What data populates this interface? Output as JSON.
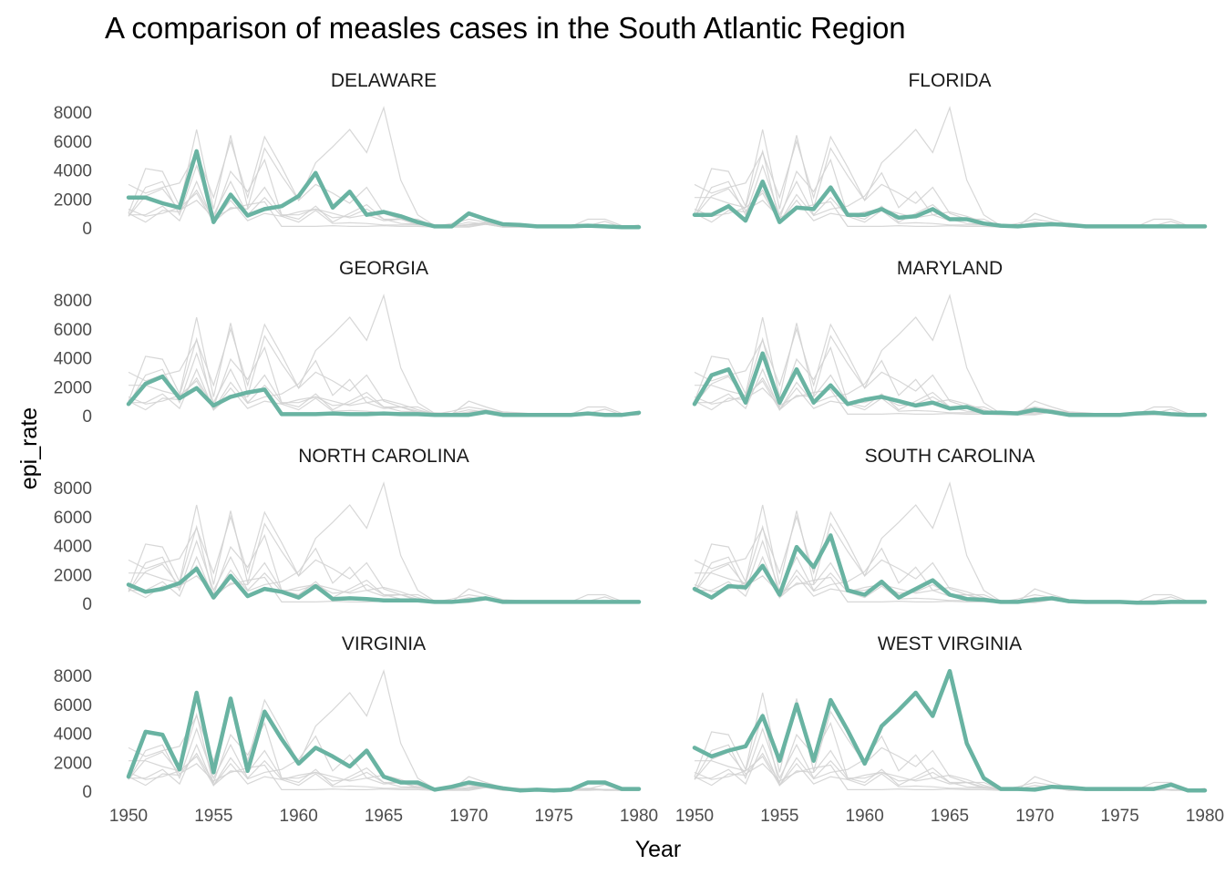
{
  "chart_data": {
    "type": "line",
    "title": "A comparison of measles cases in the South Atlantic Region",
    "xlabel": "Year",
    "ylabel": "epi_rate",
    "xlim": [
      1950,
      1980
    ],
    "ylim": [
      0,
      8500
    ],
    "x_ticks": [
      1950,
      1955,
      1960,
      1965,
      1970,
      1975,
      1980
    ],
    "y_ticks": [
      0,
      2000,
      4000,
      6000,
      8000
    ],
    "grid": false,
    "highlight_color": "#69b3a2",
    "background_color": "#d3d3d3",
    "x": [
      1950,
      1951,
      1952,
      1953,
      1954,
      1955,
      1956,
      1957,
      1958,
      1959,
      1960,
      1961,
      1962,
      1963,
      1964,
      1965,
      1966,
      1967,
      1968,
      1969,
      1970,
      1971,
      1972,
      1973,
      1974,
      1975,
      1976,
      1977,
      1978,
      1979,
      1980
    ],
    "series": [
      {
        "name": "DELAWARE",
        "values": [
          2100,
          2100,
          1700,
          1400,
          5300,
          400,
          2300,
          850,
          1300,
          1500,
          2200,
          3800,
          1400,
          2500,
          900,
          1100,
          800,
          400,
          100,
          100,
          1000,
          600,
          250,
          200,
          100,
          100,
          100,
          150,
          100,
          50,
          50
        ]
      },
      {
        "name": "FLORIDA",
        "values": [
          900,
          900,
          1500,
          500,
          3200,
          400,
          1400,
          1300,
          2800,
          900,
          900,
          1300,
          700,
          800,
          1300,
          600,
          600,
          300,
          150,
          100,
          200,
          250,
          200,
          100,
          100,
          100,
          100,
          100,
          100,
          100,
          100
        ]
      },
      {
        "name": "GEORGIA",
        "values": [
          800,
          2200,
          2700,
          1200,
          1900,
          700,
          1300,
          1600,
          1800,
          100,
          100,
          100,
          150,
          100,
          100,
          150,
          100,
          100,
          50,
          50,
          50,
          250,
          50,
          50,
          50,
          50,
          50,
          150,
          50,
          50,
          200
        ]
      },
      {
        "name": "MARYLAND",
        "values": [
          800,
          2800,
          3200,
          900,
          4300,
          900,
          3200,
          900,
          2100,
          800,
          1100,
          1300,
          1000,
          700,
          900,
          500,
          600,
          200,
          200,
          150,
          400,
          250,
          50,
          50,
          50,
          50,
          150,
          200,
          100,
          50,
          50
        ]
      },
      {
        "name": "NORTH CAROLINA",
        "values": [
          1300,
          800,
          1000,
          1400,
          2400,
          400,
          1900,
          500,
          1000,
          800,
          400,
          1200,
          300,
          350,
          300,
          200,
          200,
          200,
          100,
          100,
          200,
          350,
          100,
          100,
          100,
          100,
          100,
          100,
          100,
          100,
          100
        ]
      },
      {
        "name": "SOUTH CAROLINA",
        "values": [
          1000,
          400,
          1200,
          1100,
          2600,
          600,
          3900,
          2500,
          4700,
          900,
          600,
          1500,
          400,
          1000,
          1600,
          600,
          300,
          250,
          100,
          100,
          250,
          350,
          150,
          100,
          100,
          100,
          50,
          50,
          100,
          100,
          100
        ]
      },
      {
        "name": "VIRGINIA",
        "values": [
          1000,
          4100,
          3900,
          1500,
          6800,
          1300,
          6400,
          1400,
          5500,
          3600,
          1900,
          3000,
          2400,
          1700,
          2800,
          1000,
          600,
          600,
          100,
          300,
          600,
          400,
          200,
          50,
          100,
          50,
          100,
          600,
          600,
          150,
          150
        ]
      },
      {
        "name": "WEST VIRGINIA",
        "values": [
          3000,
          2400,
          2800,
          3100,
          5200,
          2100,
          6000,
          2100,
          6300,
          4200,
          1900,
          4500,
          5600,
          6800,
          5200,
          8300,
          3300,
          900,
          150,
          150,
          100,
          300,
          250,
          150,
          150,
          150,
          150,
          150,
          450,
          50,
          50
        ]
      }
    ]
  }
}
